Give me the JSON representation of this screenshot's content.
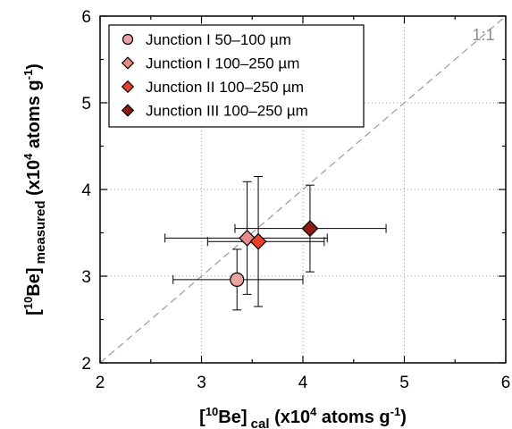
{
  "chart_data": {
    "type": "scatter",
    "xlabel": {
      "pre": "[",
      "sup1": "10",
      "mid": "Be]",
      "sub": " cal",
      "post": " (x10",
      "sup2": "4",
      "post2": " atoms g",
      "sup3": "-1",
      "end": ")"
    },
    "ylabel": {
      "pre": "[",
      "sup1": "10",
      "mid": "Be]",
      "sub": " measured",
      "post": " (x10",
      "sup2": "4",
      "post2": " atoms g",
      "sup3": "-1",
      "end": ")"
    },
    "xlim": [
      2,
      6
    ],
    "ylim": [
      2,
      6
    ],
    "xticks": [
      "2",
      "3",
      "4",
      "5",
      "6"
    ],
    "yticks": [
      "2",
      "3",
      "4",
      "5",
      "6"
    ],
    "grid": true,
    "grid_style": "dotted",
    "reference_line": {
      "label": "1:1",
      "style": "dashed",
      "color": "#9a9a9a"
    },
    "legend_position": "top-left",
    "series": [
      {
        "name": "Junction I 50–100 µm",
        "marker": "circle",
        "color": "#e9a3a1",
        "points": [
          {
            "x": 3.35,
            "y": 2.96,
            "xerr": [
              2.72,
              4.0
            ],
            "yerr": [
              2.61,
              3.31
            ]
          }
        ]
      },
      {
        "name": "Junction I 100–250 µm",
        "marker": "diamond",
        "color": "#e88a86",
        "points": [
          {
            "x": 3.45,
            "y": 3.44,
            "xerr": [
              2.64,
              4.24
            ],
            "yerr": [
              2.79,
              4.09
            ]
          }
        ]
      },
      {
        "name": "Junction II 100–250 µm",
        "marker": "diamond",
        "color": "#e9402c",
        "points": [
          {
            "x": 3.56,
            "y": 3.4,
            "xerr": [
              3.06,
              4.21
            ],
            "yerr": [
              2.65,
              4.15
            ]
          }
        ]
      },
      {
        "name": "Junction III 100–250 µm",
        "marker": "diamond",
        "color": "#8a1c10",
        "points": [
          {
            "x": 4.07,
            "y": 3.55,
            "xerr": [
              3.33,
              4.82
            ],
            "yerr": [
              3.05,
              4.05
            ]
          }
        ]
      }
    ]
  }
}
